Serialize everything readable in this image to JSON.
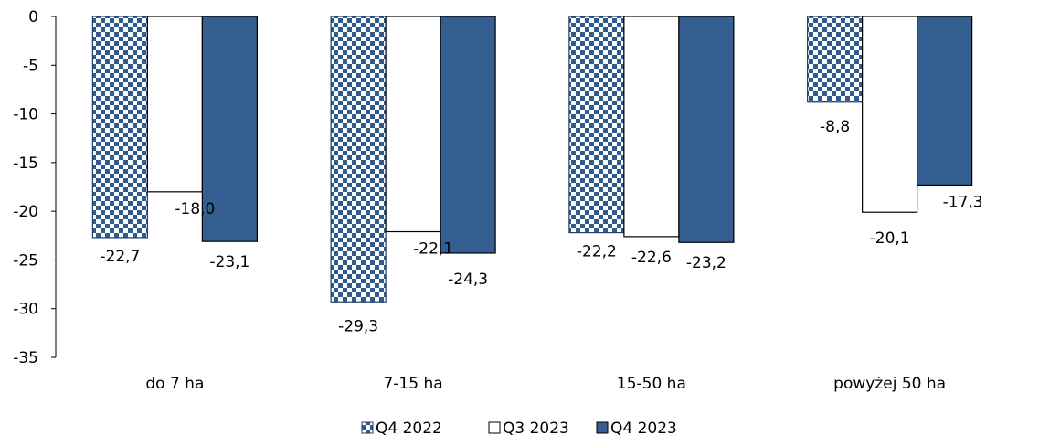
{
  "chart_data": {
    "type": "bar",
    "categories": [
      "do 7 ha",
      "7-15 ha",
      "15-50 ha",
      "powyżej 50 ha"
    ],
    "series": [
      {
        "name": "Q4 2022",
        "values": [
          -22.7,
          -29.3,
          -22.2,
          -8.8
        ],
        "fill": "pattern",
        "color": "#2f5b8f"
      },
      {
        "name": "Q3 2023",
        "values": [
          -18.0,
          -22.1,
          -22.6,
          -20.1
        ],
        "fill": "#ffffff",
        "color": "#000000"
      },
      {
        "name": "Q4 2023",
        "values": [
          -23.1,
          -24.3,
          -23.2,
          -17.3
        ],
        "fill": "#365f91",
        "color": "#000000"
      }
    ],
    "data_labels": [
      [
        "-22,7",
        "-29,3",
        "-22,2",
        "-8,8"
      ],
      [
        "-18,0",
        "-22,1",
        "-22,6",
        "-20,1"
      ],
      [
        "-23,1",
        "-24,3",
        "-23,2",
        "-17,3"
      ]
    ],
    "y_ticks": [
      0,
      -5,
      -10,
      -15,
      -20,
      -25,
      -30,
      -35
    ],
    "y_tick_labels": [
      "0",
      "-5",
      "-10",
      "-15",
      "-20",
      "-25",
      "-30",
      "-35"
    ],
    "ylim": [
      -35,
      0
    ],
    "title": "",
    "xlabel": "",
    "ylabel": "",
    "grid": false,
    "legend_position": "bottom"
  }
}
